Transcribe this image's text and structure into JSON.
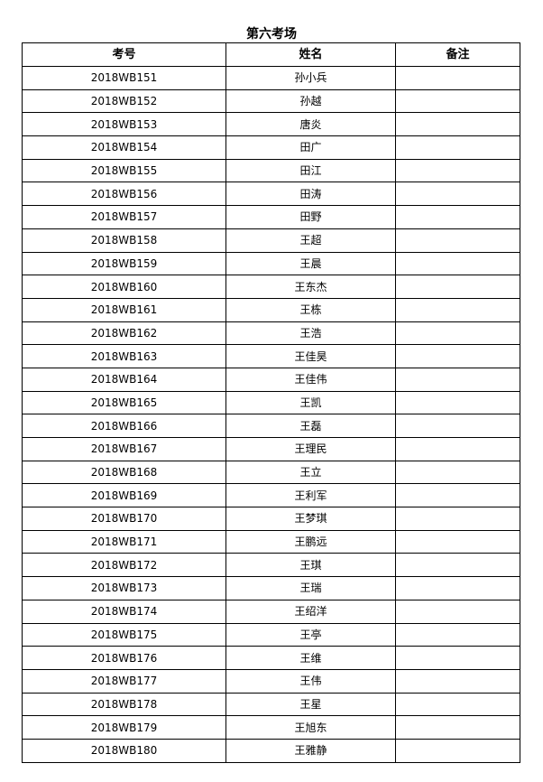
{
  "title": "第六考场",
  "headers": [
    "考号",
    "姓名",
    "备注"
  ],
  "rows": [
    [
      "2018WB151",
      "孙小兵",
      ""
    ],
    [
      "2018WB152",
      "孙越",
      ""
    ],
    [
      "2018WB153",
      "唐炎",
      ""
    ],
    [
      "2018WB154",
      "田广",
      ""
    ],
    [
      "2018WB155",
      "田江",
      ""
    ],
    [
      "2018WB156",
      "田涛",
      ""
    ],
    [
      "2018WB157",
      "田野",
      ""
    ],
    [
      "2018WB158",
      "王超",
      ""
    ],
    [
      "2018WB159",
      "王晨",
      ""
    ],
    [
      "2018WB160",
      "王东杰",
      ""
    ],
    [
      "2018WB161",
      "王栋",
      ""
    ],
    [
      "2018WB162",
      "王浩",
      ""
    ],
    [
      "2018WB163",
      "王佳昊",
      ""
    ],
    [
      "2018WB164",
      "王佳伟",
      ""
    ],
    [
      "2018WB165",
      "王凯",
      ""
    ],
    [
      "2018WB166",
      "王磊",
      ""
    ],
    [
      "2018WB167",
      "王理民",
      ""
    ],
    [
      "2018WB168",
      "王立",
      ""
    ],
    [
      "2018WB169",
      "王利军",
      ""
    ],
    [
      "2018WB170",
      "王梦琪",
      ""
    ],
    [
      "2018WB171",
      "王鹏远",
      ""
    ],
    [
      "2018WB172",
      "王琪",
      ""
    ],
    [
      "2018WB173",
      "王瑞",
      ""
    ],
    [
      "2018WB174",
      "王绍洋",
      ""
    ],
    [
      "2018WB175",
      "王亭",
      ""
    ],
    [
      "2018WB176",
      "王维",
      ""
    ],
    [
      "2018WB177",
      "王伟",
      ""
    ],
    [
      "2018WB178",
      "王星",
      ""
    ],
    [
      "2018WB179",
      "王旭东",
      ""
    ],
    [
      "2018WB180",
      "王雅静",
      ""
    ]
  ]
}
